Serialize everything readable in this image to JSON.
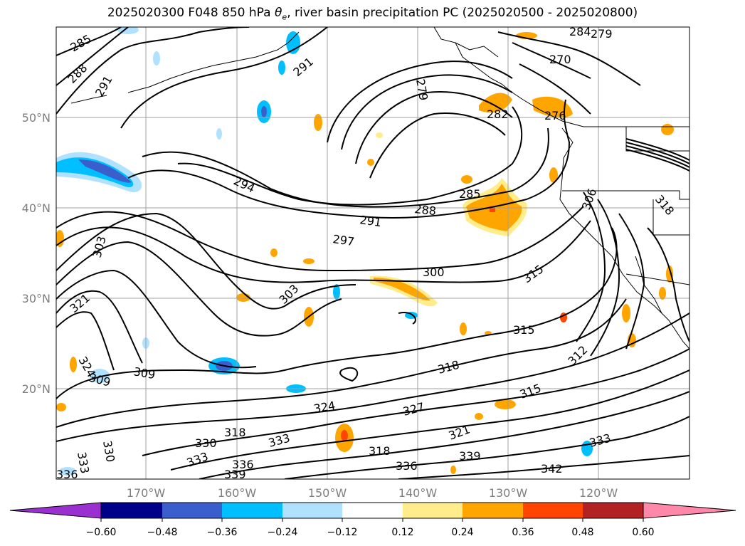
{
  "title": {
    "prefix": "2025020300 F048 850 hPa ",
    "symbol": "θ",
    "symbol_sub": "e",
    "suffix": ", river basin precipitation PC (2025020500 - 2025020800)"
  },
  "lat_labels": [
    "50°N",
    "40°N",
    "30°N",
    "20°N"
  ],
  "lon_labels": [
    "170°W",
    "160°W",
    "150°W",
    "140°W",
    "130°W",
    "120°W"
  ],
  "contour_labels": [
    "285",
    "288",
    "291",
    "291",
    "279",
    "282",
    "270",
    "284",
    "279",
    "276",
    "294",
    "291",
    "288",
    "285",
    "297",
    "300",
    "303",
    "303",
    "309",
    "312",
    "321",
    "309",
    "324",
    "318",
    "315",
    "318",
    "327",
    "324",
    "318",
    "315",
    "321",
    "333",
    "336",
    "339",
    "336",
    "339",
    "342",
    "330",
    "333",
    "330",
    "333",
    "336",
    "333",
    "306",
    "315",
    "318"
  ],
  "colorbar": {
    "ticks": [
      "−0.60",
      "−0.48",
      "−0.36",
      "−0.24",
      "−0.12",
      "0.12",
      "0.24",
      "0.36",
      "0.48",
      "0.60"
    ],
    "colors": [
      "#9b30d0",
      "#00008b",
      "#3a5fcd",
      "#00bfff",
      "#b0e2ff",
      "#ffffff",
      "#ffec8b",
      "#ffa500",
      "#ff4500",
      "#b22222",
      "#ff88aa"
    ]
  },
  "fill_colors": {
    "light_blue": "#b0e2ff",
    "blue": "#00bfff",
    "dark_blue": "#3a5fcd",
    "navy": "#00008b",
    "light_yellow": "#ffec8b",
    "orange": "#ffa500",
    "red_orange": "#ff4500"
  }
}
